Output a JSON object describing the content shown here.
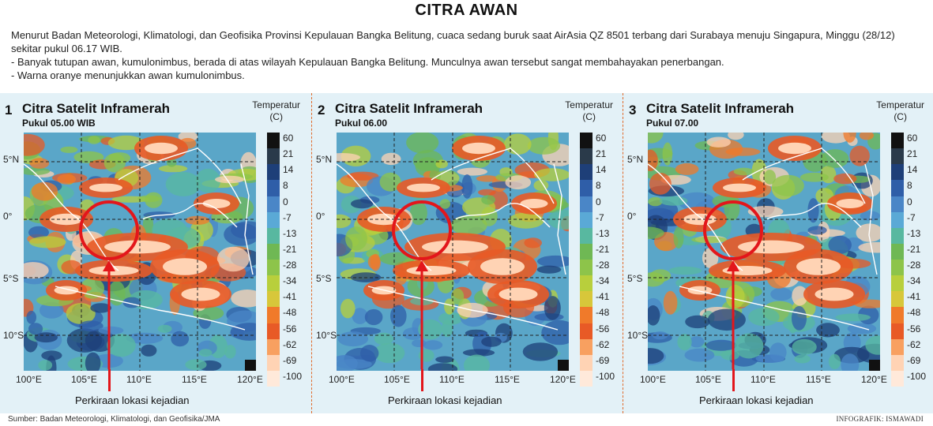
{
  "title": "CITRA AWAN",
  "intro": [
    "Menurut Badan Meteorologi, Klimatologi, dan Geofisika Provinsi Kepulauan Bangka Belitung, cuaca sedang buruk saat AirAsia QZ 8501 terbang dari Surabaya menuju Singapura, Minggu (28/12) sekitar pukul 06.17 WIB.",
    "- Banyak tutupan awan, kumulonimbus, berada di atas wilayah Kepulauan Bangka Belitung. Munculnya awan tersebut sangat membahayakan penerbangan.",
    "- Warna oranye menunjukkan awan kumulonimbus."
  ],
  "legend": {
    "title_line1": "Temperatur",
    "title_line2": "(C)",
    "ticks": [
      "60",
      "21",
      "14",
      "8",
      "0",
      "-7",
      "-13",
      "-21",
      "-28",
      "-34",
      "-41",
      "-48",
      "-56",
      "-62",
      "-69",
      "-100"
    ],
    "colors": [
      "#111111",
      "#2a3a4a",
      "#1e3f78",
      "#2f5ea8",
      "#4a86c7",
      "#5aa9d6",
      "#58b8a0",
      "#6fb854",
      "#8dc44a",
      "#b8cf3c",
      "#d7c73a",
      "#f07a2a",
      "#e85a26",
      "#f8a060",
      "#ffd3b4",
      "#ffe9da"
    ]
  },
  "axes": {
    "lat_labels": [
      "5°N",
      "0°",
      "5°S",
      "10°S"
    ],
    "lon_labels": [
      "100°E",
      "105°E",
      "110°E",
      "115°E",
      "120°E"
    ]
  },
  "panels": [
    {
      "number": "1",
      "title": "Citra Satelit Inframerah",
      "time": "Pukul 05.00 WIB",
      "caption": "Perkiraan lokasi kejadian"
    },
    {
      "number": "2",
      "title": "Citra Satelit Inframerah",
      "time": "Pukul 06.00",
      "caption": "Perkiraan lokasi kejadian"
    },
    {
      "number": "3",
      "title": "Citra Satelit Inframerah",
      "time": "Pukul 07.00",
      "caption": "Perkiraan lokasi kejadian"
    }
  ],
  "source": "Sumber: Badan Meteorologi, Klimatologi, dan Geofisika/JMA",
  "credit": "INFOGRAFIK: ISMAWADI"
}
